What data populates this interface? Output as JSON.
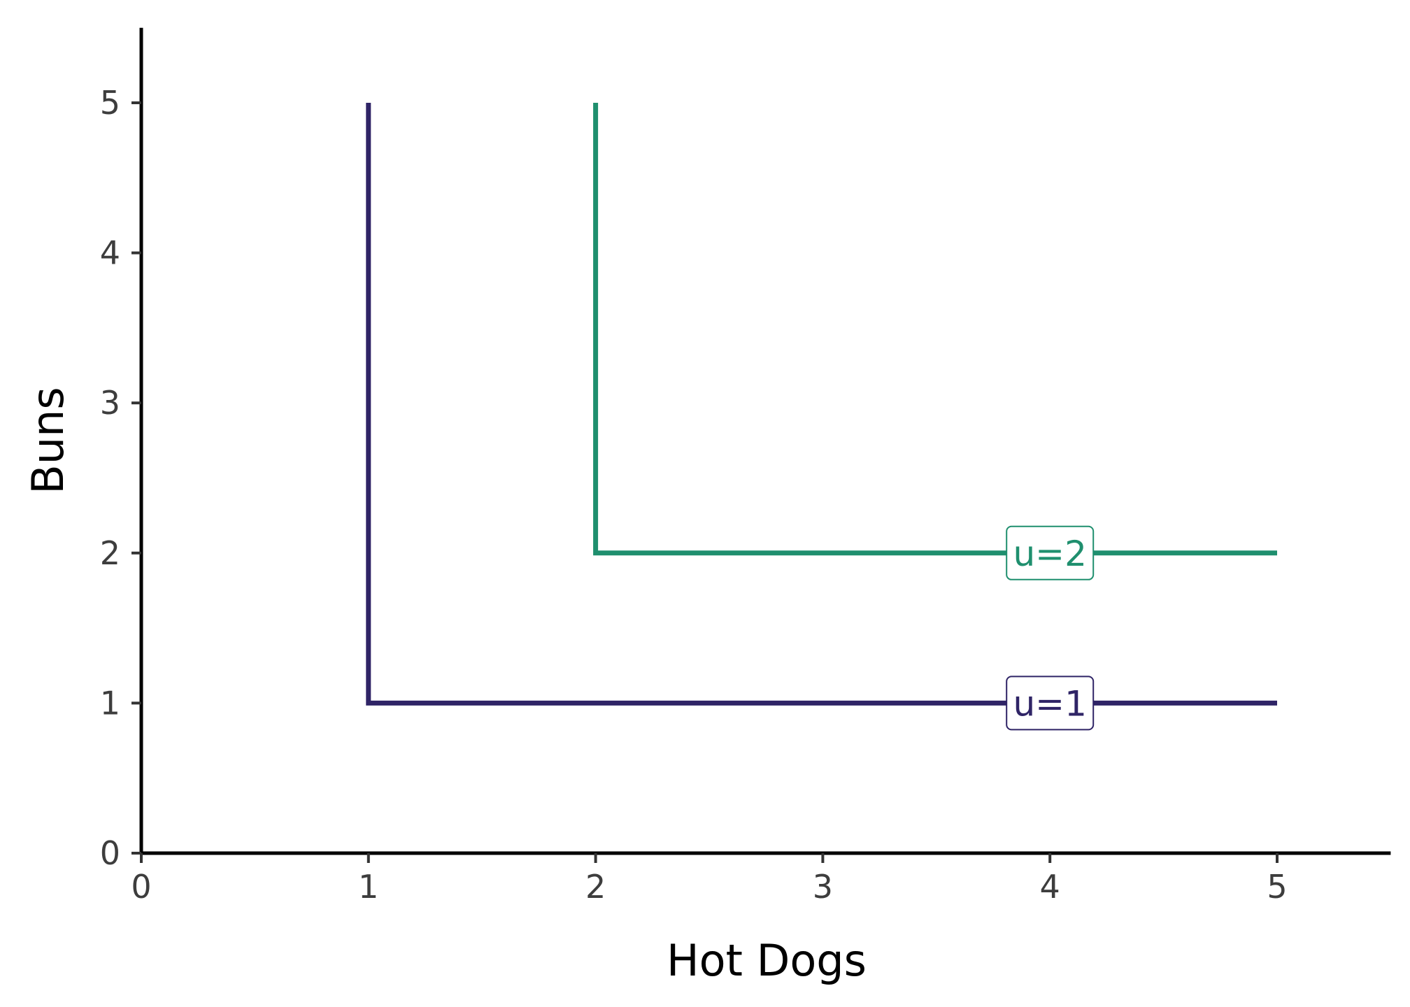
{
  "chart_data": {
    "type": "line",
    "title": "",
    "xlabel": "Hot Dogs",
    "ylabel": "Buns",
    "xlim": [
      0,
      5.5
    ],
    "ylim": [
      0,
      5.5
    ],
    "xticks": [
      "0",
      "1",
      "2",
      "3",
      "4",
      "5"
    ],
    "yticks": [
      "0",
      "1",
      "2",
      "3",
      "4",
      "5"
    ],
    "grid": false,
    "legend": "none",
    "series": [
      {
        "label": "u=1",
        "color": "#2f2466",
        "points": [
          [
            1,
            5
          ],
          [
            1,
            1
          ],
          [
            5,
            1
          ]
        ],
        "label_at": [
          4,
          1
        ]
      },
      {
        "label": "u=2",
        "color": "#1f8f6e",
        "points": [
          [
            2,
            5
          ],
          [
            2,
            2
          ],
          [
            5,
            2
          ]
        ],
        "label_at": [
          4,
          2
        ]
      }
    ]
  }
}
